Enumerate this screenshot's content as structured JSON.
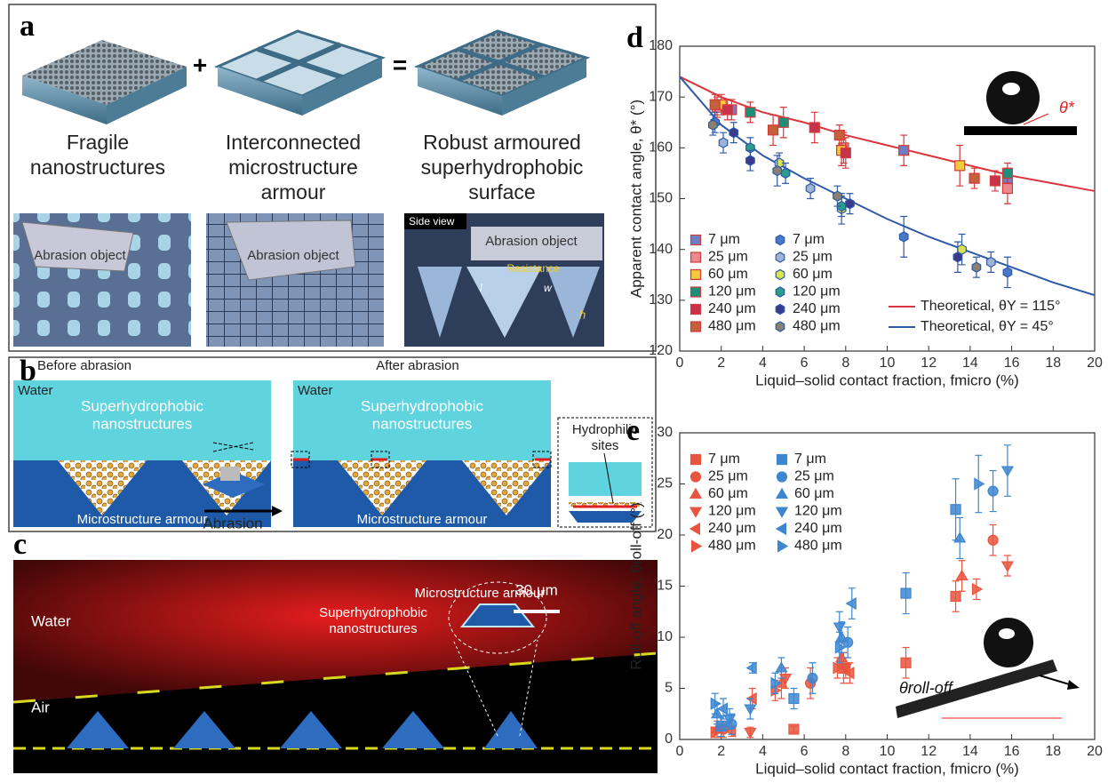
{
  "panel_a": {
    "label": "a",
    "plus": "+",
    "equals": "=",
    "captions": [
      [
        "Fragile",
        "nanostructures"
      ],
      [
        "Interconnected",
        "microstructure",
        "armour"
      ],
      [
        "Robust armoured",
        "superhydrophobic",
        "surface"
      ]
    ],
    "abrasion_object": [
      "Abrasion object",
      "Abrasion object",
      "Abrasion object"
    ],
    "side_view": "Side view",
    "resistance": "Resistance",
    "dims": [
      "l",
      "w",
      "h"
    ]
  },
  "panel_b": {
    "label": "b",
    "before": "Before abrasion",
    "after": "After abrasion",
    "water": [
      "Water",
      "Water"
    ],
    "nano": [
      [
        "Superhydrophobic",
        "nanostructures"
      ],
      [
        "Superhydrophobic",
        "nanostructures"
      ]
    ],
    "abrasion": "Abrasion",
    "armour": [
      "Microstructure armour",
      "Microstructure armour"
    ],
    "hydrophilic": [
      "Hydrophilic",
      "sites"
    ]
  },
  "panel_c": {
    "label": "c",
    "water": "Water",
    "air": "Air",
    "scale_bar": "30 μm",
    "armour": "Microstructure armour",
    "nano": [
      "Superhydrophobic",
      "nanostructures"
    ]
  },
  "chart_data": [
    {
      "label": "d",
      "type": "scatter",
      "xlabel": "Liquid–solid contact fraction, fmicro (%)",
      "ylabel": "Apparent contact angle, θ* (°)",
      "annotation": "θ*",
      "xlim": [
        0,
        20
      ],
      "ylim": [
        120,
        180
      ],
      "xticks": [
        0,
        2,
        4,
        6,
        8,
        10,
        12,
        14,
        16,
        18,
        20
      ],
      "yticks": [
        120,
        130,
        140,
        150,
        160,
        170,
        180
      ],
      "series": [
        {
          "name": "7 μm",
          "marker": "square",
          "color": "#6d7fc4",
          "edgecolor": "#d33a3a",
          "x": [
            2.5,
            10.8,
            15.8
          ],
          "values": [
            167.5,
            159.5,
            154
          ],
          "errors": [
            2,
            3,
            2
          ]
        },
        {
          "name": "25 μm",
          "marker": "square",
          "color": "#e88a8f",
          "edgecolor": "#d33a3a",
          "x": [
            1.8,
            7.9,
            15.8
          ],
          "values": [
            168,
            160,
            152
          ],
          "errors": [
            2,
            3,
            3
          ]
        },
        {
          "name": "60 μm",
          "marker": "square",
          "color": "#f5c93c",
          "edgecolor": "#d33a3a",
          "x": [
            2,
            7.8,
            13.5
          ],
          "values": [
            168.5,
            159.5,
            156.5
          ],
          "errors": [
            2,
            3,
            4
          ]
        },
        {
          "name": "120 μm",
          "marker": "square",
          "color": "#1a8f7a",
          "edgecolor": "#d33a3a",
          "x": [
            3.4,
            5,
            15.8
          ],
          "values": [
            167,
            165,
            155
          ],
          "errors": [
            2,
            3,
            2
          ]
        },
        {
          "name": "240 μm",
          "marker": "square",
          "color": "#c8324a",
          "edgecolor": "#d33a3a",
          "x": [
            2.3,
            6.5,
            8,
            15.2
          ],
          "values": [
            167.5,
            164,
            159,
            153.5
          ],
          "errors": [
            2,
            3,
            3,
            2
          ]
        },
        {
          "name": "480 μm",
          "marker": "square",
          "color": "#c4603a",
          "edgecolor": "#d33a3a",
          "x": [
            1.7,
            4.5,
            7.7,
            14.2
          ],
          "values": [
            168.5,
            163.5,
            162.5,
            154
          ],
          "errors": [
            2,
            3,
            2,
            2
          ]
        },
        {
          "name": "7 μm",
          "marker": "hexagon",
          "color": "#4a78c8",
          "edgecolor": "#2e5aa8",
          "x": [
            1.7,
            10.8,
            15.8
          ],
          "values": [
            165,
            142.5,
            135.5
          ],
          "errors": [
            2,
            4,
            3
          ]
        },
        {
          "name": "25 μm",
          "marker": "hexagon",
          "color": "#9fb3d6",
          "edgecolor": "#2e5aa8",
          "x": [
            2.1,
            6.3,
            15
          ],
          "values": [
            161,
            152,
            137.5
          ],
          "errors": [
            2,
            2,
            2
          ]
        },
        {
          "name": "60 μm",
          "marker": "hexagon",
          "color": "#d9e34a",
          "edgecolor": "#2e5aa8",
          "x": [
            4.8,
            7.8,
            13.6
          ],
          "values": [
            157,
            148,
            140
          ],
          "errors": [
            2,
            3,
            3
          ]
        },
        {
          "name": "120 μm",
          "marker": "hexagon",
          "color": "#2b9c8c",
          "edgecolor": "#2e5aa8",
          "x": [
            3.4,
            5.1,
            7.8
          ],
          "values": [
            160,
            155,
            148.5
          ],
          "errors": [
            2,
            2,
            2
          ]
        },
        {
          "name": "240 μm",
          "marker": "hexagon",
          "color": "#3b3a8c",
          "edgecolor": "#2e5aa8",
          "x": [
            2.6,
            3.4,
            8.2,
            13.4
          ],
          "values": [
            163,
            157.5,
            149,
            138.5
          ],
          "errors": [
            2,
            2,
            2,
            3
          ]
        },
        {
          "name": "480 μm",
          "marker": "hexagon",
          "color": "#8a8070",
          "edgecolor": "#2e5aa8",
          "x": [
            1.6,
            4.7,
            7.6,
            14.3
          ],
          "values": [
            164.5,
            155.5,
            150.5,
            136.5
          ],
          "errors": [
            2,
            3,
            2,
            2
          ]
        }
      ],
      "curves": [
        {
          "name": "Theoretical, θY = 115°",
          "color": "#d9363e",
          "x": [
            0,
            2,
            4,
            6,
            8,
            10,
            12,
            14,
            16,
            18,
            20
          ],
          "values": [
            174,
            170,
            167,
            165,
            162.5,
            160.5,
            158.5,
            156.5,
            154.5,
            153,
            151.5
          ]
        },
        {
          "name": "Theoretical, θY = 45°",
          "color": "#2e5aa8",
          "x": [
            0,
            2,
            4,
            6,
            8,
            10,
            12,
            14,
            16,
            18,
            20
          ],
          "values": [
            174,
            164.5,
            158.5,
            154,
            150,
            146,
            142.5,
            139.5,
            136.5,
            133.5,
            131
          ]
        }
      ]
    },
    {
      "label": "e",
      "type": "scatter",
      "xlabel": "Liquid–solid contact fraction, fmicro (%)",
      "ylabel": "Roll-off angle, θroll-off (°)",
      "annotation": "θroll-off",
      "xlim": [
        0,
        20
      ],
      "ylim": [
        0,
        30
      ],
      "xticks": [
        0,
        2,
        4,
        6,
        8,
        10,
        12,
        14,
        16,
        18,
        20
      ],
      "yticks": [
        0,
        5,
        10,
        15,
        20,
        25,
        30
      ],
      "series": [
        {
          "name": "7 μm",
          "marker": "square",
          "color": "#e8553e",
          "x": [
            5.5,
            7.9,
            10.9,
            13.3
          ],
          "values": [
            1,
            7,
            7.5,
            14
          ],
          "errors": [
            0.3,
            1.5,
            1.5,
            1.5
          ]
        },
        {
          "name": "25 μm",
          "marker": "circle",
          "color": "#e8553e",
          "x": [
            2.1,
            6.3,
            15.1
          ],
          "values": [
            1,
            5.5,
            19.5
          ],
          "errors": [
            0.8,
            1.5,
            1.5
          ]
        },
        {
          "name": "60 μm",
          "marker": "triangle-up",
          "color": "#e8553e",
          "x": [
            1.8,
            4.9,
            7.8,
            13.6
          ],
          "values": [
            1,
            5.5,
            8,
            16
          ],
          "errors": [
            0.8,
            1.5,
            1.5,
            1.5
          ]
        },
        {
          "name": "120 μm",
          "marker": "triangle-down",
          "color": "#e8553e",
          "x": [
            3.4,
            5.1,
            8,
            15.8
          ],
          "values": [
            0.7,
            6,
            7,
            17
          ],
          "errors": [
            0.5,
            1,
            1,
            1
          ]
        },
        {
          "name": "240 μm",
          "marker": "triangle-left",
          "color": "#e8553e",
          "x": [
            2.5,
            3.5,
            8.2
          ],
          "values": [
            0.8,
            4,
            6.5
          ],
          "errors": [
            0.5,
            1,
            1
          ]
        },
        {
          "name": "480 μm",
          "marker": "triangle-right",
          "color": "#e8553e",
          "x": [
            1.7,
            4.6,
            7.6,
            14.3
          ],
          "values": [
            0.7,
            4.8,
            7,
            14.7
          ],
          "errors": [
            0.5,
            1,
            1,
            1
          ]
        },
        {
          "name": "7 μm",
          "marker": "square",
          "color": "#3d86d1",
          "x": [
            2,
            5.5,
            10.9,
            13.3
          ],
          "values": [
            1.3,
            4,
            14.3,
            22.5
          ],
          "errors": [
            1,
            1,
            2,
            3
          ]
        },
        {
          "name": "25 μm",
          "marker": "circle",
          "color": "#3d86d1",
          "x": [
            2.5,
            6.4,
            8.1,
            15.1
          ],
          "values": [
            1.5,
            6,
            9.5,
            24.3
          ],
          "errors": [
            1,
            1.5,
            1.5,
            2
          ]
        },
        {
          "name": "60 μm",
          "marker": "triangle-up",
          "color": "#3d86d1",
          "x": [
            1.8,
            4.9,
            7.8,
            13.5
          ],
          "values": [
            2.5,
            7,
            10,
            19.7
          ],
          "errors": [
            1,
            1,
            1.5,
            2
          ]
        },
        {
          "name": "120 μm",
          "marker": "triangle-down",
          "color": "#3d86d1",
          "x": [
            2.4,
            3.4,
            7.7,
            15.8
          ],
          "values": [
            2,
            3,
            11,
            26.3
          ],
          "errors": [
            1,
            1,
            1.5,
            2.5
          ]
        },
        {
          "name": "240 μm",
          "marker": "triangle-left",
          "color": "#3d86d1",
          "x": [
            2.1,
            3.5,
            8.3
          ],
          "values": [
            3,
            7,
            13.3
          ],
          "errors": [
            1,
            0.5,
            1.5
          ]
        },
        {
          "name": "480 μm",
          "marker": "triangle-right",
          "color": "#3d86d1",
          "x": [
            1.7,
            4.6,
            7.7,
            14.4
          ],
          "values": [
            3.5,
            5.5,
            9,
            25
          ],
          "errors": [
            1,
            1,
            1.5,
            2.8
          ]
        }
      ]
    }
  ]
}
